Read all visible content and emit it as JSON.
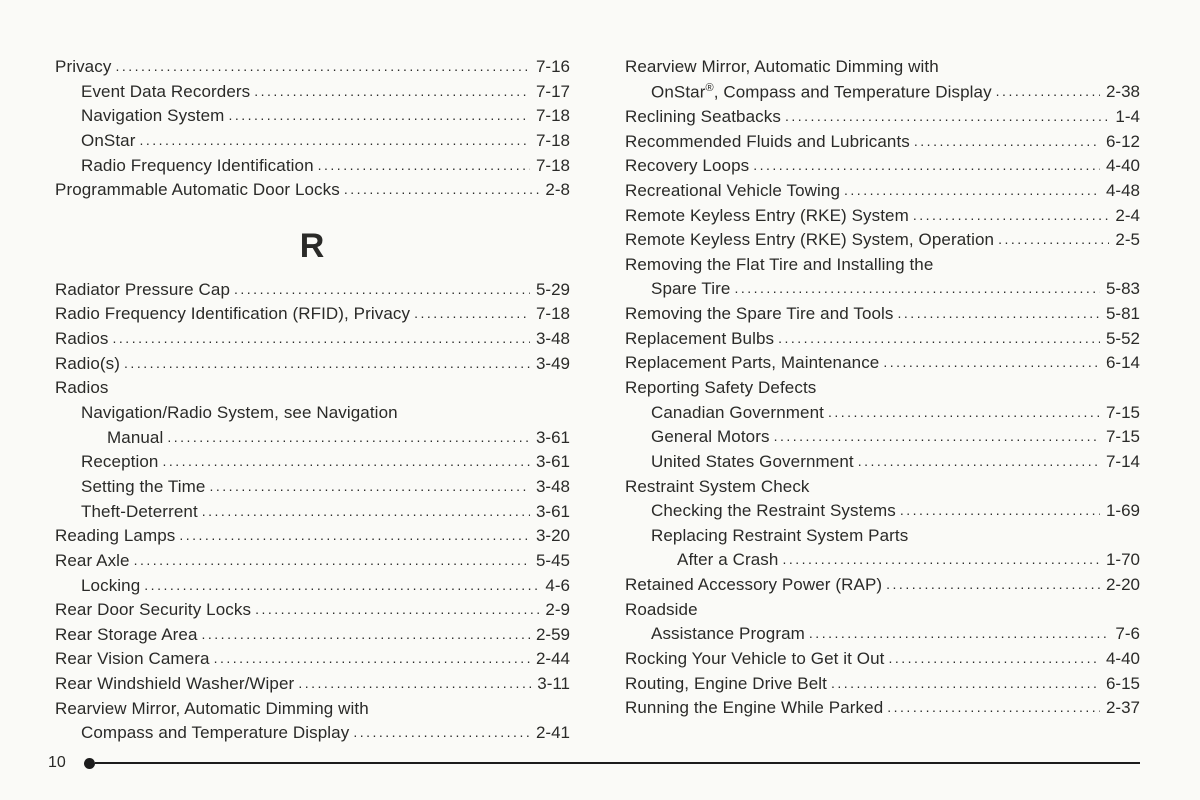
{
  "page_number": "10",
  "section_letter": "R",
  "left": [
    {
      "label": "Privacy",
      "page": "7-16",
      "indent": 0
    },
    {
      "label": "Event Data Recorders",
      "page": "7-17",
      "indent": 1
    },
    {
      "label": "Navigation System",
      "page": "7-18",
      "indent": 1
    },
    {
      "label": "OnStar",
      "page": "7-18",
      "indent": 1
    },
    {
      "label": "Radio Frequency Identification",
      "page": "7-18",
      "indent": 1
    },
    {
      "label": "Programmable Automatic Door Locks",
      "page": "2-8",
      "indent": 0
    },
    {
      "section": true
    },
    {
      "label": "Radiator Pressure Cap",
      "page": "5-29",
      "indent": 0
    },
    {
      "label": "Radio Frequency Identification (RFID), Privacy",
      "page": "7-18",
      "indent": 0
    },
    {
      "label": "Radios",
      "page": "3-48",
      "indent": 0
    },
    {
      "label": "Radio(s)",
      "page": "3-49",
      "indent": 0
    },
    {
      "label": "Radios",
      "page": null,
      "indent": 0
    },
    {
      "label": "Navigation/Radio System, see Navigation",
      "page": null,
      "indent": 1
    },
    {
      "label": "Manual",
      "page": "3-61",
      "indent": 2
    },
    {
      "label": "Reception",
      "page": "3-61",
      "indent": 1
    },
    {
      "label": "Setting the Time",
      "page": "3-48",
      "indent": 1
    },
    {
      "label": "Theft-Deterrent",
      "page": "3-61",
      "indent": 1
    },
    {
      "label": "Reading Lamps",
      "page": "3-20",
      "indent": 0
    },
    {
      "label": "Rear Axle",
      "page": "5-45",
      "indent": 0
    },
    {
      "label": "Locking",
      "page": "4-6",
      "indent": 1
    },
    {
      "label": "Rear Door Security Locks",
      "page": "2-9",
      "indent": 0
    },
    {
      "label": "Rear Storage Area",
      "page": "2-59",
      "indent": 0
    },
    {
      "label": "Rear Vision Camera",
      "page": "2-44",
      "indent": 0
    },
    {
      "label": "Rear Windshield Washer/Wiper",
      "page": "3-11",
      "indent": 0
    },
    {
      "label": "Rearview Mirror, Automatic Dimming with",
      "page": null,
      "indent": 0
    },
    {
      "label": "Compass and Temperature Display",
      "page": "2-41",
      "indent": 1
    }
  ],
  "right": [
    {
      "label": "Rearview Mirror, Automatic Dimming with",
      "page": null,
      "indent": 0
    },
    {
      "label": "OnStar®, Compass and Temperature Display",
      "page": "2-38",
      "indent": 1,
      "has_reg": true
    },
    {
      "label": "Reclining Seatbacks",
      "page": "1-4",
      "indent": 0
    },
    {
      "label": "Recommended Fluids and Lubricants",
      "page": "6-12",
      "indent": 0
    },
    {
      "label": "Recovery Loops",
      "page": "4-40",
      "indent": 0
    },
    {
      "label": "Recreational Vehicle Towing",
      "page": "4-48",
      "indent": 0
    },
    {
      "label": "Remote Keyless Entry (RKE) System",
      "page": "2-4",
      "indent": 0
    },
    {
      "label": "Remote Keyless Entry (RKE) System, Operation",
      "page": "2-5",
      "indent": 0
    },
    {
      "label": "Removing the Flat Tire and Installing the",
      "page": null,
      "indent": 0
    },
    {
      "label": "Spare Tire",
      "page": "5-83",
      "indent": 1
    },
    {
      "label": "Removing the Spare Tire and Tools",
      "page": "5-81",
      "indent": 0
    },
    {
      "label": "Replacement Bulbs",
      "page": "5-52",
      "indent": 0
    },
    {
      "label": "Replacement Parts, Maintenance",
      "page": "6-14",
      "indent": 0
    },
    {
      "label": "Reporting Safety Defects",
      "page": null,
      "indent": 0
    },
    {
      "label": "Canadian Government",
      "page": "7-15",
      "indent": 1
    },
    {
      "label": "General Motors",
      "page": "7-15",
      "indent": 1
    },
    {
      "label": "United States Government",
      "page": "7-14",
      "indent": 1
    },
    {
      "label": "Restraint System Check",
      "page": null,
      "indent": 0
    },
    {
      "label": "Checking the Restraint Systems",
      "page": "1-69",
      "indent": 1
    },
    {
      "label": "Replacing Restraint System Parts",
      "page": null,
      "indent": 1
    },
    {
      "label": "After a Crash",
      "page": "1-70",
      "indent": 2
    },
    {
      "label": "Retained Accessory Power (RAP)",
      "page": "2-20",
      "indent": 0
    },
    {
      "label": "Roadside",
      "page": null,
      "indent": 0
    },
    {
      "label": "Assistance Program",
      "page": "7-6",
      "indent": 1
    },
    {
      "label": "Rocking Your Vehicle to Get it Out",
      "page": "4-40",
      "indent": 0
    },
    {
      "label": "Routing, Engine Drive Belt",
      "page": "6-15",
      "indent": 0
    },
    {
      "label": "Running the Engine While Parked",
      "page": "2-37",
      "indent": 0
    }
  ]
}
